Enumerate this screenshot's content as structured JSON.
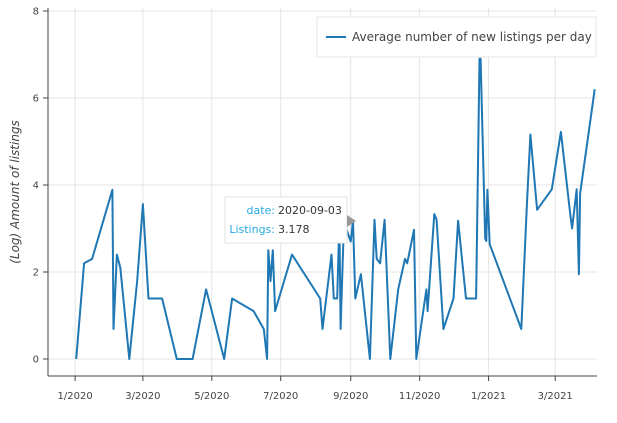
{
  "chart_data": {
    "type": "line",
    "ylabel": "(Log) Amount of listings",
    "xlabel": "",
    "x_ticks": [
      "1/2020",
      "3/2020",
      "5/2020",
      "7/2020",
      "9/2020",
      "11/2020",
      "1/2021",
      "3/2021"
    ],
    "y_ticks": [
      "0",
      "2",
      "4",
      "6",
      "8"
    ],
    "ylim": [
      0,
      8
    ],
    "xlim": [
      "2019-12-08",
      "2021-04-07"
    ],
    "grid": true,
    "legend_position": "top-right",
    "line_color": "#1f77b4",
    "series": [
      {
        "name": "Average number of new listings per day",
        "points": [
          [
            "2020-01-02",
            0.0
          ],
          [
            "2020-01-09",
            2.2
          ],
          [
            "2020-01-16",
            2.3
          ],
          [
            "2020-02-03",
            3.89
          ],
          [
            "2020-02-04",
            0.69
          ],
          [
            "2020-02-07",
            2.4
          ],
          [
            "2020-02-10",
            2.1
          ],
          [
            "2020-02-18",
            0.0
          ],
          [
            "2020-02-25",
            1.8
          ],
          [
            "2020-03-01",
            3.56
          ],
          [
            "2020-03-06",
            1.39
          ],
          [
            "2020-03-18",
            1.39
          ],
          [
            "2020-03-31",
            0.0
          ],
          [
            "2020-04-14",
            0.0
          ],
          [
            "2020-04-26",
            1.6
          ],
          [
            "2020-05-12",
            0.0
          ],
          [
            "2020-05-19",
            1.39
          ],
          [
            "2020-06-07",
            1.1
          ],
          [
            "2020-06-16",
            0.69
          ],
          [
            "2020-06-19",
            0.0
          ],
          [
            "2020-06-20",
            2.5
          ],
          [
            "2020-06-22",
            1.79
          ],
          [
            "2020-06-24",
            2.5
          ],
          [
            "2020-06-26",
            1.1
          ],
          [
            "2020-07-11",
            2.4
          ],
          [
            "2020-08-05",
            1.39
          ],
          [
            "2020-08-07",
            0.69
          ],
          [
            "2020-08-15",
            2.4
          ],
          [
            "2020-08-17",
            1.39
          ],
          [
            "2020-08-20",
            1.39
          ],
          [
            "2020-08-22",
            3.2
          ],
          [
            "2020-08-23",
            0.69
          ],
          [
            "2020-08-26",
            3.18
          ],
          [
            "2020-08-28",
            3.0
          ],
          [
            "2020-09-01",
            2.7
          ],
          [
            "2020-09-03",
            3.178
          ],
          [
            "2020-09-05",
            1.39
          ],
          [
            "2020-09-10",
            1.95
          ],
          [
            "2020-09-18",
            0.0
          ],
          [
            "2020-09-22",
            3.2
          ],
          [
            "2020-09-24",
            2.3
          ],
          [
            "2020-09-27",
            2.2
          ],
          [
            "2020-10-01",
            3.2
          ],
          [
            "2020-10-06",
            0.0
          ],
          [
            "2020-10-13",
            1.6
          ],
          [
            "2020-10-19",
            2.3
          ],
          [
            "2020-10-21",
            2.2
          ],
          [
            "2020-10-27",
            2.97
          ],
          [
            "2020-10-29",
            0.0
          ],
          [
            "2020-11-07",
            1.6
          ],
          [
            "2020-11-08",
            1.1
          ],
          [
            "2020-11-14",
            3.33
          ],
          [
            "2020-11-16",
            3.2
          ],
          [
            "2020-11-22",
            0.69
          ],
          [
            "2020-12-01",
            1.39
          ],
          [
            "2020-12-05",
            3.18
          ],
          [
            "2020-12-12",
            1.39
          ],
          [
            "2020-12-21",
            1.39
          ],
          [
            "2020-12-24",
            6.9
          ],
          [
            "2020-12-25",
            6.9
          ],
          [
            "2020-12-29",
            2.77
          ],
          [
            "2020-12-30",
            2.71
          ],
          [
            "2020-12-31",
            3.89
          ],
          [
            "2021-01-02",
            2.64
          ],
          [
            "2021-01-30",
            0.69
          ],
          [
            "2021-02-04",
            3.6
          ],
          [
            "2021-02-07",
            5.16
          ],
          [
            "2021-02-13",
            3.43
          ],
          [
            "2021-02-26",
            3.9
          ],
          [
            "2021-03-06",
            5.22
          ],
          [
            "2021-03-14",
            3.4
          ],
          [
            "2021-03-16",
            3.0
          ],
          [
            "2021-03-20",
            3.9
          ],
          [
            "2021-03-22",
            1.95
          ],
          [
            "2021-03-23",
            3.8
          ],
          [
            "2021-04-05",
            6.2
          ]
        ]
      }
    ],
    "tooltip": {
      "date_label": "date:",
      "date_value": "2020-09-03",
      "listings_label": "Listings:",
      "listings_value": "3.178"
    }
  }
}
